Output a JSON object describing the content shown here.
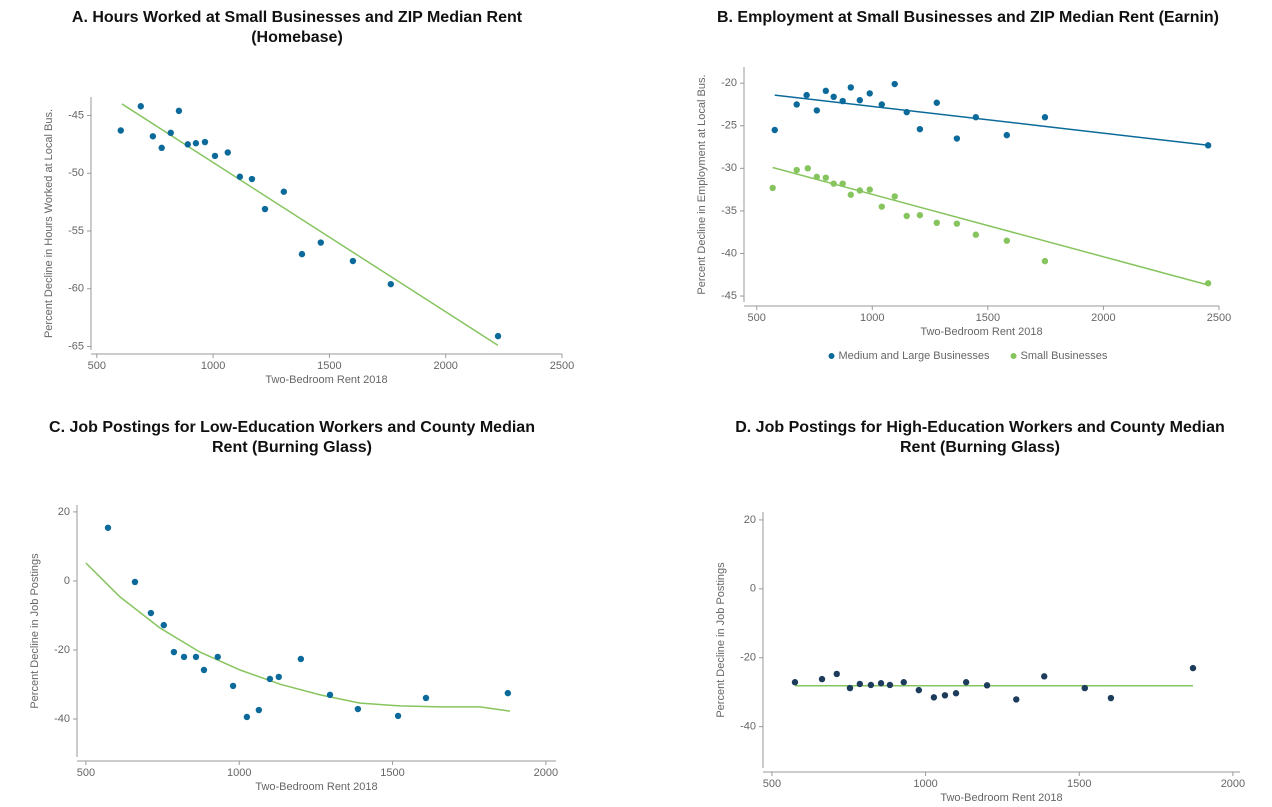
{
  "chart_data": [
    {
      "type": "scatter",
      "title": [
        "A. Hours Worked at Small Businesses and ZIP Median Rent",
        "(Homebase)"
      ],
      "xlabel": "Two-Bedroom Rent 2018",
      "ylabel": "Percent Decline in Hours Worked at Local Bus.",
      "xlim": [
        475,
        2500
      ],
      "ylim": [
        -65.3,
        -43.4
      ],
      "xticks": [
        500,
        1000,
        1500,
        2000,
        2500
      ],
      "yticks": [
        -65,
        -60,
        -55,
        -50,
        -45
      ],
      "series": [
        {
          "color": "#0b6a99",
          "x": [
            603,
            689,
            741,
            779,
            818,
            853,
            891,
            926,
            965,
            1008,
            1063,
            1115,
            1167,
            1223,
            1304,
            1382,
            1463,
            1601,
            1764,
            2225
          ],
          "values": [
            -46.3,
            -44.2,
            -46.8,
            -47.8,
            -46.5,
            -44.6,
            -47.5,
            -47.4,
            -47.3,
            -48.5,
            -48.2,
            -50.3,
            -50.5,
            -53.1,
            -51.6,
            -57.0,
            -56.0,
            -57.6,
            -59.6,
            -64.1
          ]
        }
      ],
      "fit_lines": [
        {
          "color": "#86c45e",
          "x": [
            608,
            2225
          ],
          "values": [
            -44.0,
            -64.9
          ]
        }
      ]
    },
    {
      "type": "scatter",
      "title": [
        "B. Employment at Small Businesses and ZIP Median Rent (Earnin)"
      ],
      "xlabel": "Two-Bedroom Rent 2018",
      "ylabel": "Percent Decline in Employment at Local Bus.",
      "xlim": [
        445,
        2500
      ],
      "ylim": [
        -45.7,
        -18.1
      ],
      "xticks": [
        500,
        1000,
        1500,
        2000,
        2500
      ],
      "yticks": [
        -45,
        -40,
        -35,
        -30,
        -25,
        -20
      ],
      "legend": "bottom",
      "series": [
        {
          "name": "Medium and Large Businesses",
          "color": "#0b6a99",
          "x": [
            578,
            673,
            716,
            760,
            799,
            833,
            872,
            907,
            946,
            989,
            1041,
            1097,
            1149,
            1206,
            1279,
            1366,
            1448,
            1582,
            1747,
            2453
          ],
          "values": [
            -25.5,
            -22.5,
            -21.4,
            -23.2,
            -20.9,
            -21.6,
            -22.1,
            -20.5,
            -22.0,
            -21.2,
            -22.5,
            -20.1,
            -23.4,
            -25.4,
            -22.3,
            -26.5,
            -24.0,
            -26.1,
            -24.0,
            -27.3
          ]
        },
        {
          "name": "Small Businesses",
          "color": "#86c45e",
          "x": [
            569,
            673,
            721,
            760,
            799,
            833,
            872,
            907,
            946,
            989,
            1041,
            1097,
            1149,
            1206,
            1279,
            1366,
            1448,
            1582,
            1747,
            2453
          ],
          "values": [
            -32.3,
            -30.2,
            -30.0,
            -31.0,
            -31.1,
            -31.8,
            -31.8,
            -33.1,
            -32.6,
            -32.5,
            -34.5,
            -33.3,
            -35.6,
            -35.5,
            -36.4,
            -36.5,
            -37.8,
            -38.5,
            -40.9,
            -43.5
          ]
        }
      ],
      "fit_lines": [
        {
          "color": "#0b6a99",
          "x": [
            578,
            2453
          ],
          "values": [
            -21.4,
            -27.3
          ]
        },
        {
          "color": "#86c45e",
          "x": [
            569,
            2453
          ],
          "values": [
            -29.9,
            -43.7
          ]
        }
      ]
    },
    {
      "type": "scatter",
      "title": [
        "C. Job Postings for Low-Education Workers and County Median",
        "Rent (Burning Glass)"
      ],
      "xlabel": "Two-Bedroom Rent 2018",
      "ylabel": "Percent Decline in Job Postings",
      "xlim": [
        471,
        2033
      ],
      "ylim": [
        -51,
        22
      ],
      "xticks": [
        500,
        1000,
        1500,
        2000
      ],
      "yticks": [
        -40,
        -20,
        0,
        20
      ],
      "series": [
        {
          "color": "#0b6a99",
          "x": [
            572,
            660,
            712,
            754,
            787,
            820,
            859,
            885,
            930,
            980,
            1025,
            1064,
            1100,
            1129,
            1201,
            1296,
            1387,
            1518,
            1609,
            1876
          ],
          "values": [
            15.4,
            -0.3,
            -9.3,
            -12.8,
            -20.6,
            -22.0,
            -22.0,
            -25.8,
            -22.0,
            -30.4,
            -39.4,
            -37.4,
            -28.4,
            -27.8,
            -22.6,
            -33.0,
            -37.1,
            -39.1,
            -33.9,
            -32.5
          ]
        }
      ],
      "fit_lines": [
        {
          "color": "#86c45e",
          "x": [
            500,
            611,
            741,
            872,
            1003,
            1133,
            1264,
            1394,
            1524,
            1655,
            1785,
            1883
          ],
          "values": [
            5.2,
            -4.6,
            -13.6,
            -20.6,
            -25.8,
            -29.9,
            -33.0,
            -35.4,
            -36.2,
            -36.5,
            -36.5,
            -37.7
          ]
        }
      ]
    },
    {
      "type": "scatter",
      "title": [
        "D. Job Postings for High-Education Workers and County Median",
        "Rent (Burning Glass)"
      ],
      "xlabel": "Two-Bedroom Rent 2018",
      "ylabel": "Percent Decline in Job Postings",
      "xlim": [
        471,
        2023
      ],
      "ylim": [
        -52,
        22.3
      ],
      "xticks": [
        500,
        1000,
        1500,
        2000
      ],
      "yticks": [
        -40,
        -20,
        0,
        20
      ],
      "series": [
        {
          "color": "#1d3c5c",
          "x": [
            575,
            663,
            711,
            754,
            786,
            822,
            855,
            884,
            929,
            978,
            1027,
            1063,
            1099,
            1132,
            1200,
            1295,
            1386,
            1518,
            1603,
            1870
          ],
          "values": [
            -27.1,
            -26.2,
            -24.7,
            -28.8,
            -27.6,
            -27.9,
            -27.4,
            -27.9,
            -27.1,
            -29.4,
            -31.5,
            -30.9,
            -30.3,
            -27.1,
            -28.0,
            -32.1,
            -25.4,
            -28.8,
            -31.7,
            -23.0
          ]
        }
      ],
      "fit_lines": [
        {
          "color": "#86c45e",
          "x": [
            575,
            1870
          ],
          "values": [
            -28.1,
            -28.1
          ]
        }
      ]
    }
  ]
}
